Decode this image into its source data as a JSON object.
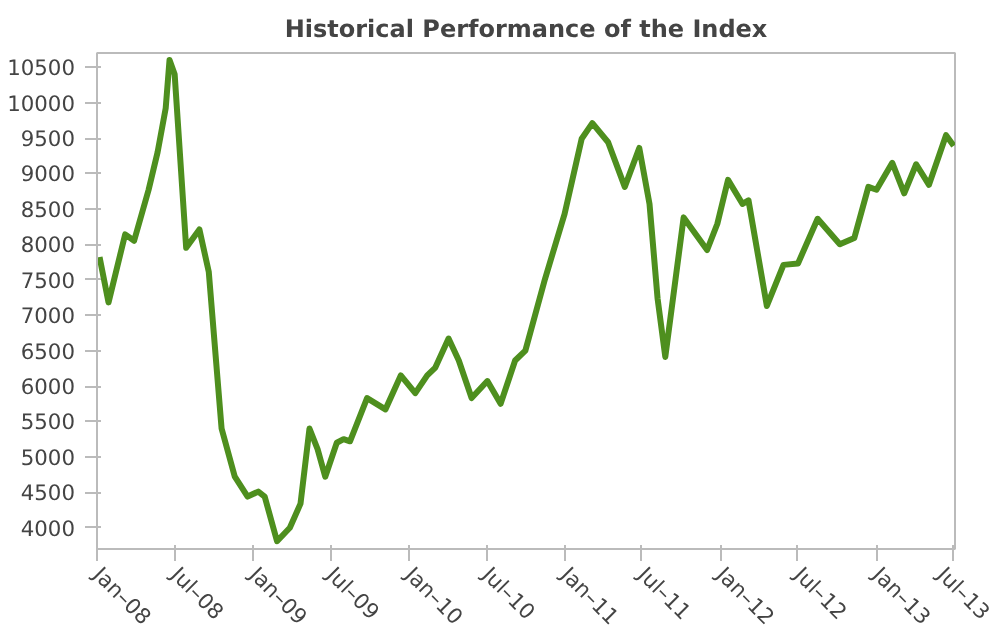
{
  "chart_data": {
    "type": "line",
    "title": "Historical Performance of the Index",
    "x": [
      "2008-01-07",
      "2008-01-28",
      "2008-03-07",
      "2008-03-28",
      "2008-05-01",
      "2008-05-22",
      "2008-06-10",
      "2008-06-19",
      "2008-07-01",
      "2008-07-28",
      "2008-08-28",
      "2008-09-19",
      "2008-10-19",
      "2008-11-19",
      "2008-12-19",
      "2009-01-13",
      "2009-01-28",
      "2009-02-26",
      "2009-03-28",
      "2009-04-22",
      "2009-05-13",
      "2009-06-01",
      "2009-06-19",
      "2009-07-16",
      "2009-08-01",
      "2009-08-16",
      "2009-09-25",
      "2009-11-07",
      "2009-12-13",
      "2010-01-16",
      "2010-02-13",
      "2010-03-04",
      "2010-04-04",
      "2010-04-28",
      "2010-05-28",
      "2010-07-04",
      "2010-08-04",
      "2010-09-07",
      "2010-10-01",
      "2010-11-16",
      "2011-01-01",
      "2011-02-10",
      "2011-03-07",
      "2011-04-13",
      "2011-05-22",
      "2011-06-25",
      "2011-07-19",
      "2011-08-07",
      "2011-08-25",
      "2011-10-07",
      "2011-12-01",
      "2011-12-25",
      "2012-01-19",
      "2012-02-22",
      "2012-03-07",
      "2012-04-19",
      "2012-05-28",
      "2012-07-01",
      "2012-08-16",
      "2012-10-07",
      "2012-11-10",
      "2012-12-13",
      "2013-01-01",
      "2013-02-07",
      "2013-03-07",
      "2013-04-04",
      "2013-05-04",
      "2013-06-13",
      "2013-07-01"
    ],
    "series": [
      {
        "color": "#4e8f1e",
        "values": [
          7820,
          7180,
          8140,
          8050,
          8770,
          9300,
          9920,
          10600,
          10400,
          7950,
          8210,
          7610,
          5400,
          4720,
          4440,
          4510,
          4440,
          3810,
          4000,
          4340,
          5400,
          5110,
          4720,
          5200,
          5250,
          5220,
          5830,
          5670,
          6150,
          5900,
          6150,
          6260,
          6670,
          6360,
          5830,
          6070,
          5750,
          6360,
          6500,
          7510,
          8430,
          9490,
          9710,
          9440,
          8810,
          9360,
          8570,
          7230,
          6410,
          8380,
          7920,
          8290,
          8910,
          8570,
          8620,
          7130,
          7710,
          7730,
          8360,
          8000,
          8090,
          8810,
          8770,
          9150,
          8720,
          9130,
          8840,
          9540,
          9390
        ]
      }
    ],
    "xlim": [
      "2008-01-01",
      "2013-07-04"
    ],
    "xticks": [
      {
        "value": "2008-01-01",
        "label": "Jan–08"
      },
      {
        "value": "2008-07-01",
        "label": "Jul–08"
      },
      {
        "value": "2009-01-01",
        "label": "Jan–09"
      },
      {
        "value": "2009-07-01",
        "label": "Jul–09"
      },
      {
        "value": "2010-01-01",
        "label": "Jan–10"
      },
      {
        "value": "2010-07-01",
        "label": "Jul–10"
      },
      {
        "value": "2011-01-01",
        "label": "Jan–11"
      },
      {
        "value": "2011-07-01",
        "label": "Jul–11"
      },
      {
        "value": "2012-01-01",
        "label": "Jan–12"
      },
      {
        "value": "2012-07-01",
        "label": "Jul–12"
      },
      {
        "value": "2013-01-01",
        "label": "Jan–13"
      },
      {
        "value": "2013-07-01",
        "label": "Jul–13"
      }
    ],
    "ylim": [
      3700,
      10700
    ],
    "yticks": [
      4000,
      4500,
      5000,
      5500,
      6000,
      6500,
      7000,
      7500,
      8000,
      8500,
      9000,
      9500,
      10000,
      10500
    ],
    "grid": false,
    "marker": "none",
    "line_style": "solid"
  }
}
